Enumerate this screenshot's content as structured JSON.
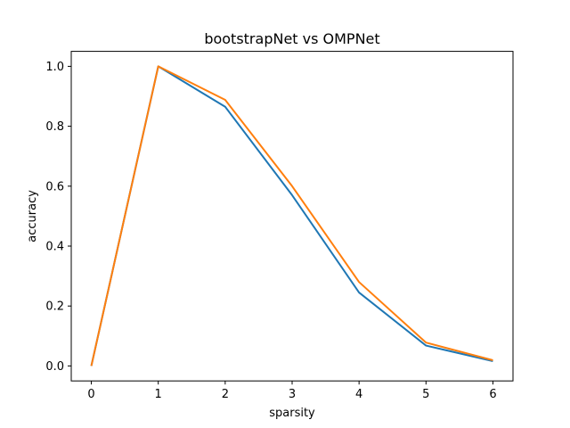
{
  "chart_data": {
    "type": "line",
    "title": "bootstrapNet vs OMPNet",
    "xlabel": "sparsity",
    "ylabel": "accuracy",
    "xlim": [
      -0.3,
      6.3
    ],
    "ylim": [
      -0.05,
      1.05
    ],
    "x_ticks": [
      0,
      1,
      2,
      3,
      4,
      5,
      6
    ],
    "y_ticks": [
      0.0,
      0.2,
      0.4,
      0.6,
      0.8,
      1.0
    ],
    "grid": false,
    "legend": "none",
    "x": [
      0,
      1,
      2,
      3,
      4,
      5,
      6
    ],
    "series": [
      {
        "color": "#1f77b4",
        "values": [
          0.0,
          1.0,
          0.865,
          0.57,
          0.245,
          0.068,
          0.016
        ]
      },
      {
        "color": "#ff7f0e",
        "values": [
          0.0,
          1.0,
          0.888,
          0.6,
          0.28,
          0.078,
          0.019
        ]
      }
    ]
  }
}
